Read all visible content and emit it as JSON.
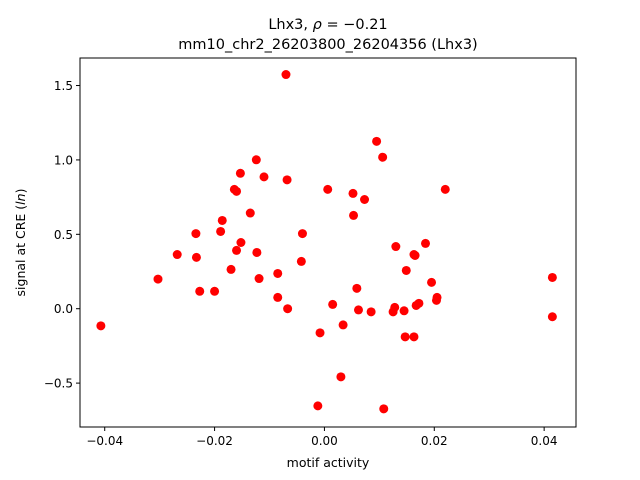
{
  "chart_data": {
    "type": "scatter",
    "title_line1_prefix": "Lhx3, ",
    "title_line1_rho": "ρ",
    "title_line1_suffix": " = −0.21",
    "title_line2": "mm10_chr2_26203800_26204356 (Lhx3)",
    "xlabel": "motif activity",
    "ylabel_prefix": "signal at CRE (",
    "ylabel_var": "ln",
    "ylabel_suffix": ")",
    "xlim": [
      -0.0445,
      0.0458
    ],
    "ylim": [
      -0.795,
      1.685
    ],
    "xticks": [
      -0.04,
      -0.02,
      0.0,
      0.02,
      0.04
    ],
    "xtick_labels": [
      "−0.04",
      "−0.02",
      "0.00",
      "0.02",
      "0.04"
    ],
    "yticks": [
      -0.5,
      0.0,
      0.5,
      1.0,
      1.5
    ],
    "ytick_labels": [
      "−0.5",
      "0.0",
      "0.5",
      "1.0",
      "1.5"
    ],
    "grid": false,
    "marker_color": "#ff0000",
    "points": [
      {
        "x": -0.0407,
        "y": -0.115
      },
      {
        "x": -0.0303,
        "y": 0.199
      },
      {
        "x": -0.0268,
        "y": 0.364
      },
      {
        "x": -0.0234,
        "y": 0.505
      },
      {
        "x": -0.0233,
        "y": 0.345
      },
      {
        "x": -0.0227,
        "y": 0.117
      },
      {
        "x": -0.02,
        "y": 0.117
      },
      {
        "x": -0.0189,
        "y": 0.519
      },
      {
        "x": -0.0186,
        "y": 0.593
      },
      {
        "x": -0.017,
        "y": 0.264
      },
      {
        "x": -0.0164,
        "y": 0.802
      },
      {
        "x": -0.016,
        "y": 0.789
      },
      {
        "x": -0.016,
        "y": 0.392
      },
      {
        "x": -0.0153,
        "y": 0.91
      },
      {
        "x": -0.0152,
        "y": 0.445
      },
      {
        "x": -0.0135,
        "y": 0.643
      },
      {
        "x": -0.0124,
        "y": 1.001
      },
      {
        "x": -0.0123,
        "y": 0.378
      },
      {
        "x": -0.0119,
        "y": 0.203
      },
      {
        "x": -0.011,
        "y": 0.886
      },
      {
        "x": -0.0085,
        "y": 0.237
      },
      {
        "x": -0.0085,
        "y": 0.076
      },
      {
        "x": -0.007,
        "y": 1.574
      },
      {
        "x": -0.0068,
        "y": 0.866
      },
      {
        "x": -0.0067,
        "y": 0.0
      },
      {
        "x": -0.0042,
        "y": 0.318
      },
      {
        "x": -0.004,
        "y": 0.505
      },
      {
        "x": -0.0012,
        "y": -0.653
      },
      {
        "x": -0.0008,
        "y": -0.162
      },
      {
        "x": 0.0006,
        "y": 0.802
      },
      {
        "x": 0.0015,
        "y": 0.029
      },
      {
        "x": 0.003,
        "y": -0.458
      },
      {
        "x": 0.0034,
        "y": -0.109
      },
      {
        "x": 0.0052,
        "y": 0.775
      },
      {
        "x": 0.0053,
        "y": 0.627
      },
      {
        "x": 0.0059,
        "y": 0.137
      },
      {
        "x": 0.0062,
        "y": -0.008
      },
      {
        "x": 0.0073,
        "y": 0.734
      },
      {
        "x": 0.0085,
        "y": -0.021
      },
      {
        "x": 0.0095,
        "y": 1.125
      },
      {
        "x": 0.0106,
        "y": 1.018
      },
      {
        "x": 0.0108,
        "y": -0.673
      },
      {
        "x": 0.0125,
        "y": -0.021
      },
      {
        "x": 0.0128,
        "y": 0.009
      },
      {
        "x": 0.013,
        "y": 0.418
      },
      {
        "x": 0.0145,
        "y": -0.014
      },
      {
        "x": 0.0147,
        "y": -0.189
      },
      {
        "x": 0.0149,
        "y": 0.257
      },
      {
        "x": 0.0163,
        "y": -0.189
      },
      {
        "x": 0.0163,
        "y": 0.364
      },
      {
        "x": 0.0165,
        "y": 0.358
      },
      {
        "x": 0.0167,
        "y": 0.022
      },
      {
        "x": 0.0172,
        "y": 0.036
      },
      {
        "x": 0.0184,
        "y": 0.439
      },
      {
        "x": 0.0195,
        "y": 0.177
      },
      {
        "x": 0.0204,
        "y": 0.056
      },
      {
        "x": 0.0205,
        "y": 0.076
      },
      {
        "x": 0.022,
        "y": 0.802
      },
      {
        "x": 0.0415,
        "y": 0.21
      },
      {
        "x": 0.0415,
        "y": -0.054
      }
    ]
  }
}
